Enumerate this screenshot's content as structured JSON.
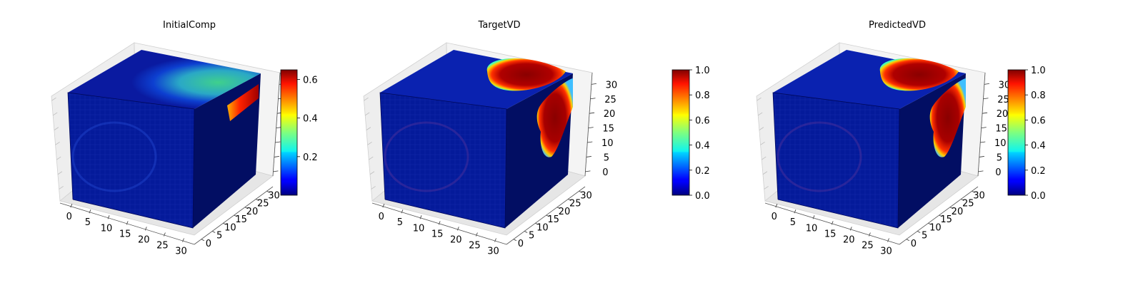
{
  "chart_data": [
    {
      "type": "voxel-3d",
      "title": "InitialComp",
      "axes": {
        "x_ticks": [
          "0",
          "5",
          "10",
          "15",
          "20",
          "25",
          "30"
        ],
        "y_ticks": [
          "0",
          "5",
          "10",
          "15",
          "20",
          "25",
          "30"
        ],
        "z_ticks": []
      },
      "colorbar": {
        "colormap": "jet",
        "vmin": 0.0,
        "vmax": 0.65,
        "ticks": [
          "0.2",
          "0.4",
          "0.6"
        ]
      }
    },
    {
      "type": "voxel-3d",
      "title": "TargetVD",
      "axes": {
        "x_ticks": [
          "0",
          "5",
          "10",
          "15",
          "20",
          "25",
          "30"
        ],
        "y_ticks": [
          "0",
          "5",
          "10",
          "15",
          "20",
          "25",
          "30"
        ],
        "z_ticks": [
          "0",
          "5",
          "10",
          "15",
          "20",
          "25",
          "30"
        ]
      },
      "colorbar": {
        "colormap": "jet",
        "vmin": 0.0,
        "vmax": 1.0,
        "ticks": [
          "0.0",
          "0.2",
          "0.4",
          "0.6",
          "0.8",
          "1.0"
        ]
      }
    },
    {
      "type": "voxel-3d",
      "title": "PredictedVD",
      "axes": {
        "x_ticks": [
          "0",
          "5",
          "10",
          "15",
          "20",
          "25",
          "30"
        ],
        "y_ticks": [
          "0",
          "5",
          "10",
          "15",
          "20",
          "25",
          "30"
        ],
        "z_ticks": [
          "0",
          "5",
          "10",
          "15",
          "20",
          "25",
          "30"
        ]
      },
      "colorbar": {
        "colormap": "jet",
        "vmin": 0.0,
        "vmax": 1.0,
        "ticks": [
          "0.0",
          "0.2",
          "0.4",
          "0.6",
          "0.8",
          "1.0"
        ]
      }
    }
  ]
}
